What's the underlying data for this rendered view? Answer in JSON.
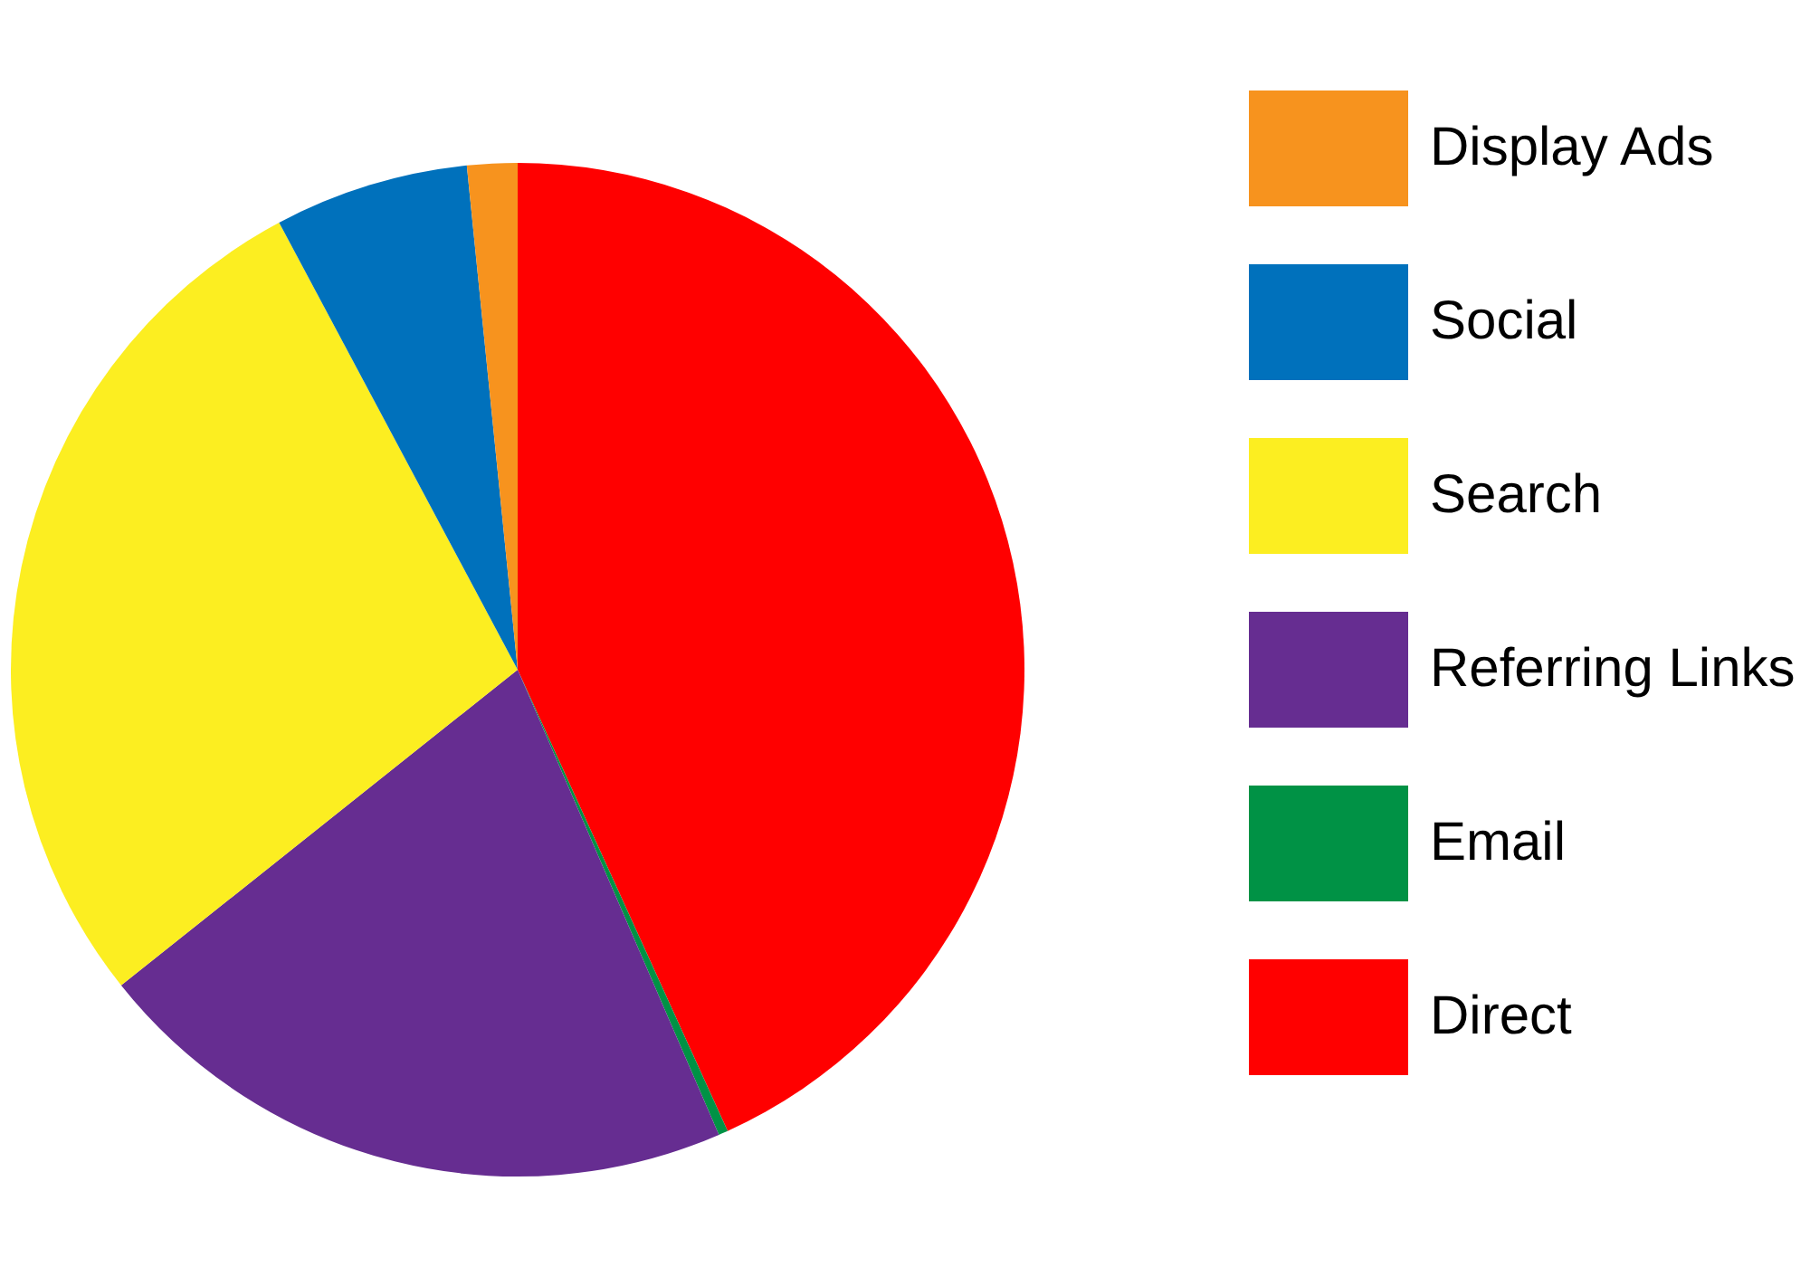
{
  "chart_data": {
    "type": "pie",
    "categories": [
      "Direct",
      "Email",
      "Referring Links",
      "Search",
      "Social",
      "Display Ads"
    ],
    "values": [
      43.2,
      0.3,
      20.8,
      27.9,
      6.2,
      1.6
    ],
    "colors": [
      "#ff0000",
      "#009245",
      "#662d91",
      "#fcee21",
      "#0071bc",
      "#f7931e"
    ],
    "legend": "right"
  }
}
